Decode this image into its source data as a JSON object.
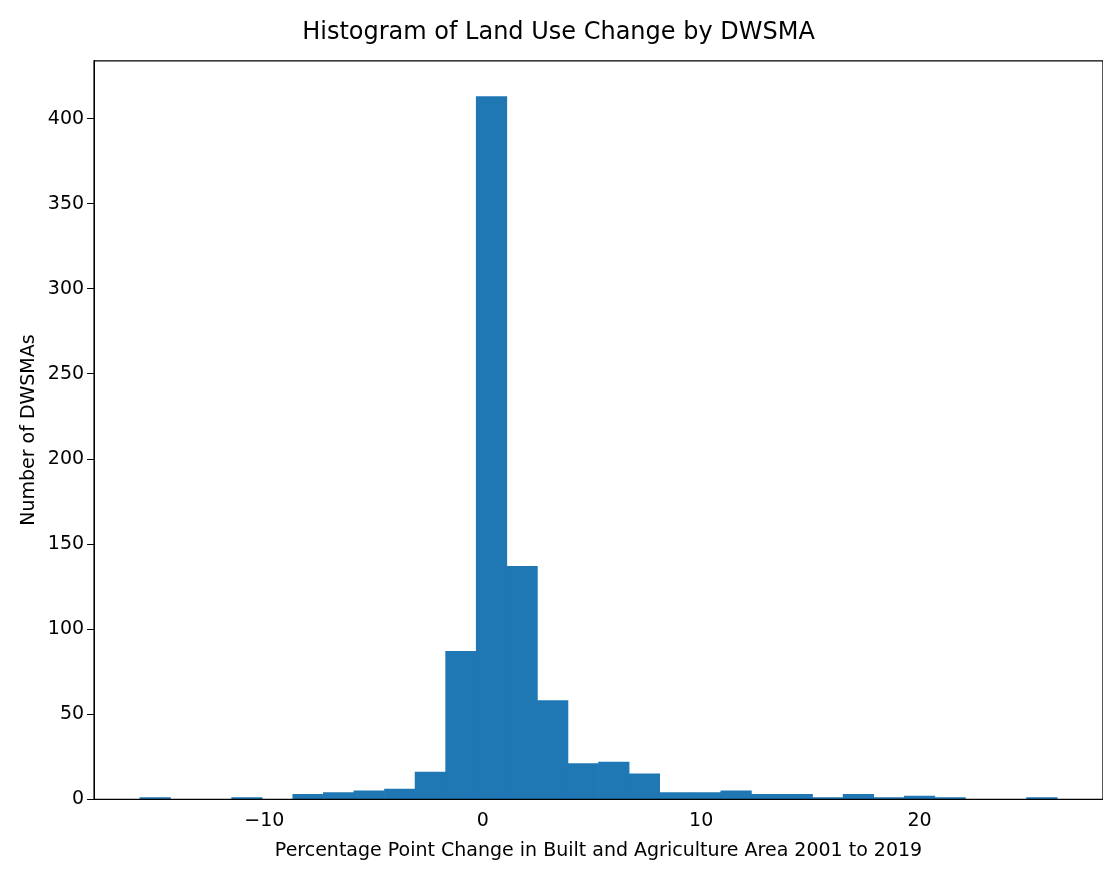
{
  "chart_data": {
    "type": "histogram",
    "title": "Histogram of Land Use Change by DWSMA",
    "xlabel": "Percentage Point Change in Built and Agriculture Area 2001 to 2019",
    "ylabel": "Number of DWSMAs",
    "color": "#1f77b4",
    "bins": [
      -15.7,
      -14.3,
      -12.9,
      -11.5,
      -10.1,
      -8.7,
      -7.3,
      -5.9,
      -4.5,
      -3.1,
      -1.7,
      -0.3,
      1.1,
      2.5,
      3.9,
      5.3,
      6.7,
      8.1,
      9.5,
      10.9,
      12.3,
      13.7,
      15.1,
      16.5,
      17.9,
      19.3,
      20.7,
      22.1,
      23.5,
      24.9,
      26.3
    ],
    "values": [
      1,
      0,
      0,
      1,
      0,
      3,
      4,
      5,
      6,
      16,
      87,
      413,
      137,
      58,
      21,
      22,
      15,
      4,
      4,
      5,
      3,
      3,
      1,
      3,
      1,
      2,
      1,
      0,
      0,
      1
    ],
    "xlim": [
      -17.8,
      28.4
    ],
    "ylim": [
      0,
      434
    ],
    "xticks": [
      {
        "value": -10,
        "label": "−10"
      },
      0,
      10,
      20
    ],
    "yticks": [
      0,
      50,
      100,
      150,
      200,
      250,
      300,
      350,
      400
    ],
    "grid": false,
    "legend": false
  }
}
